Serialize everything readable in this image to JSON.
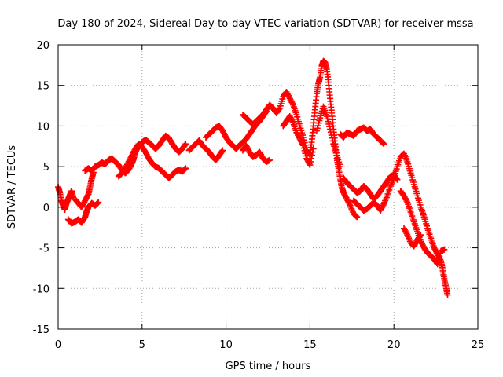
{
  "chart_data": {
    "type": "scatter",
    "title": "Day 180 of 2024, Sidereal Day-to-day VTEC variation (SDTVAR) for receiver mssa",
    "xlabel": "GPS time / hours",
    "ylabel": "SDTVAR / TECUs",
    "xlim": [
      0,
      25
    ],
    "ylim": [
      -15,
      20
    ],
    "x_ticks": [
      0,
      5,
      10,
      15,
      20,
      25
    ],
    "y_ticks": [
      -15,
      -10,
      -5,
      0,
      5,
      10,
      15,
      20
    ],
    "x_tick_labels": [
      "0",
      "5",
      "10",
      "15",
      "20",
      "25"
    ],
    "y_tick_labels": [
      "-15",
      "-10",
      "-5",
      "0",
      "5",
      "10",
      "15",
      "20"
    ],
    "grid": true,
    "marker": "+",
    "series": [
      {
        "name": "SDTVAR",
        "color": "#ff0000",
        "points": [
          [
            0.0,
            2.5
          ],
          [
            0.1,
            1.8
          ],
          [
            0.2,
            0.8
          ],
          [
            0.3,
            0.2
          ],
          [
            0.4,
            -0.3
          ],
          [
            0.5,
            0.5
          ],
          [
            0.6,
            1.0
          ],
          [
            0.7,
            1.5
          ],
          [
            0.8,
            2.0
          ],
          [
            0.9,
            1.2
          ],
          [
            0.6,
            -1.5
          ],
          [
            0.8,
            -2.0
          ],
          [
            1.0,
            -1.8
          ],
          [
            1.2,
            -1.5
          ],
          [
            1.4,
            -1.9
          ],
          [
            1.6,
            -1.2
          ],
          [
            1.7,
            -0.5
          ],
          [
            1.8,
            0.0
          ],
          [
            2.0,
            0.5
          ],
          [
            2.2,
            0.2
          ],
          [
            2.4,
            0.6
          ],
          [
            1.0,
            1.0
          ],
          [
            1.2,
            0.5
          ],
          [
            1.4,
            0.0
          ],
          [
            1.6,
            0.8
          ],
          [
            1.8,
            1.6
          ],
          [
            1.9,
            2.5
          ],
          [
            2.0,
            3.5
          ],
          [
            2.1,
            4.3
          ],
          [
            1.6,
            4.5
          ],
          [
            1.8,
            4.8
          ],
          [
            2.0,
            4.5
          ],
          [
            2.2,
            5.0
          ],
          [
            2.4,
            5.2
          ],
          [
            2.6,
            5.5
          ],
          [
            2.8,
            5.3
          ],
          [
            3.0,
            5.8
          ],
          [
            3.2,
            6.0
          ],
          [
            3.4,
            5.6
          ],
          [
            3.6,
            5.2
          ],
          [
            3.8,
            4.6
          ],
          [
            4.0,
            4.2
          ],
          [
            4.2,
            4.6
          ],
          [
            4.4,
            5.4
          ],
          [
            4.5,
            6.0
          ],
          [
            4.6,
            6.8
          ],
          [
            4.8,
            7.5
          ],
          [
            5.0,
            8.0
          ],
          [
            5.2,
            8.3
          ],
          [
            5.4,
            8.0
          ],
          [
            5.6,
            7.6
          ],
          [
            5.8,
            7.2
          ],
          [
            6.0,
            7.6
          ],
          [
            6.2,
            8.2
          ],
          [
            6.4,
            8.8
          ],
          [
            6.6,
            8.5
          ],
          [
            6.8,
            7.8
          ],
          [
            7.0,
            7.2
          ],
          [
            7.2,
            6.8
          ],
          [
            7.4,
            7.2
          ],
          [
            7.6,
            7.8
          ],
          [
            3.6,
            3.8
          ],
          [
            3.8,
            4.2
          ],
          [
            4.0,
            4.8
          ],
          [
            4.2,
            5.6
          ],
          [
            4.4,
            6.4
          ],
          [
            4.6,
            7.2
          ],
          [
            4.8,
            7.8
          ],
          [
            5.0,
            7.4
          ],
          [
            5.2,
            6.8
          ],
          [
            5.4,
            6.0
          ],
          [
            5.6,
            5.4
          ],
          [
            5.8,
            5.0
          ],
          [
            6.0,
            4.8
          ],
          [
            6.2,
            4.4
          ],
          [
            6.4,
            4.0
          ],
          [
            6.6,
            3.6
          ],
          [
            6.8,
            4.0
          ],
          [
            7.0,
            4.4
          ],
          [
            7.2,
            4.6
          ],
          [
            7.4,
            4.4
          ],
          [
            7.6,
            4.8
          ],
          [
            7.8,
            7.0
          ],
          [
            8.0,
            7.4
          ],
          [
            8.2,
            7.8
          ],
          [
            8.4,
            8.2
          ],
          [
            8.6,
            7.6
          ],
          [
            8.8,
            7.2
          ],
          [
            9.0,
            6.8
          ],
          [
            9.2,
            6.2
          ],
          [
            9.4,
            5.8
          ],
          [
            9.6,
            6.4
          ],
          [
            9.8,
            7.0
          ],
          [
            8.8,
            8.6
          ],
          [
            9.0,
            9.0
          ],
          [
            9.2,
            9.4
          ],
          [
            9.4,
            9.8
          ],
          [
            9.6,
            10.0
          ],
          [
            9.8,
            9.4
          ],
          [
            10.0,
            8.6
          ],
          [
            10.2,
            8.0
          ],
          [
            10.4,
            7.6
          ],
          [
            10.6,
            7.2
          ],
          [
            10.8,
            7.6
          ],
          [
            11.0,
            8.0
          ],
          [
            11.2,
            8.4
          ],
          [
            11.4,
            9.0
          ],
          [
            11.6,
            9.6
          ],
          [
            11.8,
            10.2
          ],
          [
            12.0,
            10.6
          ],
          [
            12.2,
            11.2
          ],
          [
            12.4,
            11.8
          ],
          [
            11.0,
            7.0
          ],
          [
            11.2,
            7.6
          ],
          [
            11.4,
            6.8
          ],
          [
            11.6,
            6.2
          ],
          [
            11.8,
            6.4
          ],
          [
            12.0,
            6.8
          ],
          [
            12.2,
            6.0
          ],
          [
            12.4,
            5.6
          ],
          [
            12.6,
            5.8
          ],
          [
            11.0,
            11.4
          ],
          [
            11.2,
            11.0
          ],
          [
            11.4,
            10.6
          ],
          [
            11.6,
            10.2
          ],
          [
            11.8,
            10.6
          ],
          [
            12.0,
            11.0
          ],
          [
            12.2,
            11.4
          ],
          [
            12.4,
            12.0
          ],
          [
            12.6,
            12.6
          ],
          [
            12.8,
            12.2
          ],
          [
            13.0,
            11.6
          ],
          [
            13.2,
            12.2
          ],
          [
            13.4,
            13.6
          ],
          [
            13.6,
            14.2
          ],
          [
            13.8,
            13.4
          ],
          [
            14.0,
            12.6
          ],
          [
            14.2,
            11.4
          ],
          [
            14.4,
            10.0
          ],
          [
            14.6,
            8.6
          ],
          [
            14.8,
            7.0
          ],
          [
            15.0,
            6.4
          ],
          [
            15.1,
            8.0
          ],
          [
            15.2,
            10.0
          ],
          [
            15.3,
            12.0
          ],
          [
            15.4,
            14.0
          ],
          [
            15.5,
            15.2
          ],
          [
            15.6,
            16.0
          ],
          [
            15.7,
            17.4
          ],
          [
            15.8,
            18.0
          ],
          [
            15.9,
            17.8
          ],
          [
            16.0,
            17.0
          ],
          [
            16.1,
            15.4
          ],
          [
            16.2,
            13.4
          ],
          [
            16.3,
            11.6
          ],
          [
            16.4,
            9.6
          ],
          [
            16.5,
            7.8
          ],
          [
            16.6,
            6.0
          ],
          [
            16.7,
            4.8
          ],
          [
            16.8,
            3.6
          ],
          [
            16.9,
            2.4
          ],
          [
            17.0,
            1.8
          ],
          [
            17.2,
            1.0
          ],
          [
            17.4,
            0.2
          ],
          [
            17.6,
            -0.8
          ],
          [
            17.8,
            -1.2
          ],
          [
            13.4,
            10.0
          ],
          [
            13.6,
            10.6
          ],
          [
            13.8,
            11.2
          ],
          [
            14.0,
            10.4
          ],
          [
            14.2,
            9.2
          ],
          [
            14.4,
            8.4
          ],
          [
            14.6,
            7.6
          ],
          [
            14.8,
            6.0
          ],
          [
            15.0,
            5.2
          ],
          [
            15.2,
            7.2
          ],
          [
            15.4,
            9.4
          ],
          [
            15.6,
            11.0
          ],
          [
            15.8,
            12.4
          ],
          [
            16.0,
            11.2
          ],
          [
            16.2,
            9.6
          ],
          [
            16.4,
            7.8
          ],
          [
            16.6,
            6.4
          ],
          [
            16.8,
            5.0
          ],
          [
            16.8,
            9.0
          ],
          [
            17.0,
            8.6
          ],
          [
            17.2,
            9.2
          ],
          [
            17.4,
            9.0
          ],
          [
            17.6,
            8.8
          ],
          [
            17.8,
            9.4
          ],
          [
            18.0,
            9.6
          ],
          [
            18.2,
            9.8
          ],
          [
            18.4,
            9.4
          ],
          [
            18.6,
            9.6
          ],
          [
            18.8,
            9.0
          ],
          [
            19.0,
            8.6
          ],
          [
            19.2,
            8.2
          ],
          [
            19.4,
            7.8
          ],
          [
            17.0,
            3.6
          ],
          [
            17.2,
            3.0
          ],
          [
            17.4,
            2.6
          ],
          [
            17.6,
            2.2
          ],
          [
            17.8,
            1.8
          ],
          [
            18.0,
            2.0
          ],
          [
            18.2,
            2.6
          ],
          [
            18.4,
            2.2
          ],
          [
            18.6,
            1.6
          ],
          [
            18.8,
            1.0
          ],
          [
            19.0,
            1.4
          ],
          [
            19.2,
            2.0
          ],
          [
            19.4,
            2.6
          ],
          [
            19.6,
            3.2
          ],
          [
            19.8,
            3.8
          ],
          [
            20.0,
            4.0
          ],
          [
            20.2,
            3.4
          ],
          [
            17.6,
            0.8
          ],
          [
            17.8,
            0.4
          ],
          [
            18.0,
            0.0
          ],
          [
            18.2,
            -0.4
          ],
          [
            18.4,
            -0.2
          ],
          [
            18.6,
            0.2
          ],
          [
            18.8,
            0.6
          ],
          [
            19.0,
            0.2
          ],
          [
            19.2,
            -0.4
          ],
          [
            19.4,
            0.4
          ],
          [
            19.6,
            1.4
          ],
          [
            19.8,
            2.6
          ],
          [
            20.0,
            3.6
          ],
          [
            20.2,
            5.0
          ],
          [
            20.4,
            6.2
          ],
          [
            20.6,
            6.6
          ],
          [
            20.8,
            5.6
          ],
          [
            21.0,
            4.2
          ],
          [
            21.2,
            2.8
          ],
          [
            21.4,
            1.4
          ],
          [
            21.6,
            0.0
          ],
          [
            21.8,
            -1.2
          ],
          [
            22.0,
            -2.6
          ],
          [
            22.2,
            -3.8
          ],
          [
            22.4,
            -5.0
          ],
          [
            22.6,
            -5.8
          ],
          [
            22.8,
            -6.6
          ],
          [
            22.9,
            -7.6
          ],
          [
            23.0,
            -8.8
          ],
          [
            23.1,
            -9.8
          ],
          [
            23.2,
            -10.8
          ],
          [
            20.4,
            2.0
          ],
          [
            20.6,
            1.4
          ],
          [
            20.8,
            0.6
          ],
          [
            21.0,
            -0.6
          ],
          [
            21.2,
            -1.8
          ],
          [
            21.4,
            -3.0
          ],
          [
            21.6,
            -4.2
          ],
          [
            21.8,
            -5.0
          ],
          [
            22.0,
            -5.6
          ],
          [
            22.2,
            -6.0
          ],
          [
            22.4,
            -6.4
          ],
          [
            22.6,
            -7.0
          ],
          [
            22.8,
            -5.4
          ],
          [
            23.0,
            -5.2
          ],
          [
            20.6,
            -2.6
          ],
          [
            20.8,
            -3.4
          ],
          [
            21.0,
            -4.4
          ],
          [
            21.2,
            -4.8
          ],
          [
            21.4,
            -4.0
          ],
          [
            21.6,
            -3.4
          ]
        ]
      }
    ]
  }
}
